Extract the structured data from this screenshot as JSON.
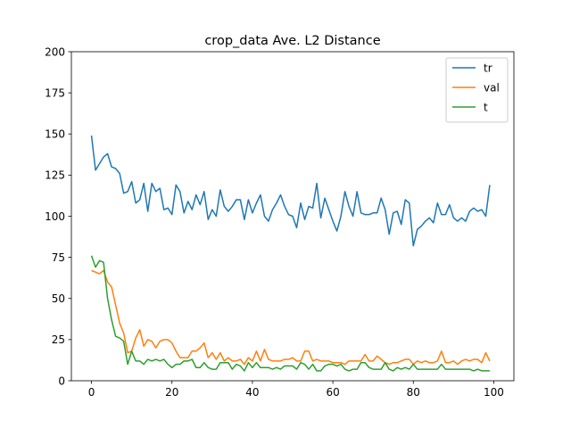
{
  "chart_data": {
    "type": "line",
    "title": "crop_data Ave. L2 Distance",
    "xlabel": "",
    "ylabel": "",
    "xlim": [
      -5,
      105
    ],
    "ylim": [
      0,
      200
    ],
    "xticks": [
      0,
      20,
      40,
      60,
      80,
      100
    ],
    "yticks": [
      0,
      25,
      50,
      75,
      100,
      125,
      150,
      175,
      200
    ],
    "grid": false,
    "legend": "top-right",
    "series": [
      {
        "name": "tr",
        "color": "#1f77b4",
        "values": [
          149,
          128,
          132,
          136,
          138,
          130,
          129,
          126,
          114,
          115,
          121,
          108,
          110,
          120,
          103,
          120,
          115,
          117,
          104,
          105,
          101,
          119,
          115,
          102,
          109,
          104,
          113,
          107,
          115,
          98,
          104,
          100,
          116,
          106,
          103,
          106,
          110,
          110,
          98,
          110,
          102,
          108,
          113,
          100,
          97,
          104,
          108,
          113,
          106,
          101,
          100,
          93,
          108,
          98,
          106,
          105,
          120,
          99,
          111,
          104,
          97,
          91,
          100,
          115,
          106,
          100,
          115,
          102,
          101,
          101,
          102,
          102,
          111,
          104,
          89,
          102,
          103,
          95,
          110,
          108,
          82,
          92,
          94,
          97,
          99,
          96,
          108,
          101,
          101,
          107,
          99,
          97,
          99,
          97,
          103,
          105,
          103,
          104,
          100,
          119
        ]
      },
      {
        "name": "val",
        "color": "#ff7f0e",
        "values": [
          67,
          66,
          65,
          67,
          60,
          57,
          46,
          35,
          29,
          17,
          18,
          26,
          31,
          21,
          25,
          24,
          20,
          24,
          25,
          25,
          23,
          18,
          14,
          14,
          14,
          18,
          18,
          20,
          23,
          14,
          17,
          13,
          17,
          12,
          14,
          12,
          12,
          13,
          10,
          14,
          12,
          18,
          12,
          19,
          13,
          12,
          12,
          12,
          13,
          13,
          14,
          12,
          12,
          18,
          18,
          12,
          13,
          12,
          12,
          12,
          11,
          11,
          11,
          10,
          12,
          12,
          12,
          12,
          16,
          12,
          12,
          15,
          13,
          11,
          10,
          11,
          11,
          12,
          13,
          13,
          10,
          12,
          11,
          12,
          11,
          11,
          12,
          18,
          11,
          11,
          12,
          10,
          12,
          13,
          12,
          13,
          13,
          11,
          17,
          12
        ]
      },
      {
        "name": "t",
        "color": "#2ca02c",
        "values": [
          76,
          69,
          73,
          72,
          50,
          37,
          27,
          26,
          24,
          10,
          18,
          12,
          12,
          10,
          13,
          12,
          13,
          12,
          13,
          10,
          8,
          10,
          10,
          12,
          12,
          13,
          8,
          8,
          11,
          8,
          7,
          7,
          11,
          11,
          11,
          7,
          10,
          9,
          6,
          11,
          8,
          11,
          8,
          8,
          8,
          7,
          8,
          7,
          9,
          9,
          9,
          7,
          11,
          10,
          7,
          10,
          6,
          6,
          9,
          10,
          10,
          9,
          10,
          7,
          6,
          7,
          7,
          11,
          11,
          8,
          7,
          7,
          7,
          11,
          7,
          6,
          8,
          7,
          8,
          7,
          10,
          7,
          7,
          7,
          7,
          7,
          7,
          10,
          7,
          7,
          7,
          7,
          7,
          7,
          7,
          6,
          7,
          6,
          6,
          6
        ]
      }
    ]
  }
}
